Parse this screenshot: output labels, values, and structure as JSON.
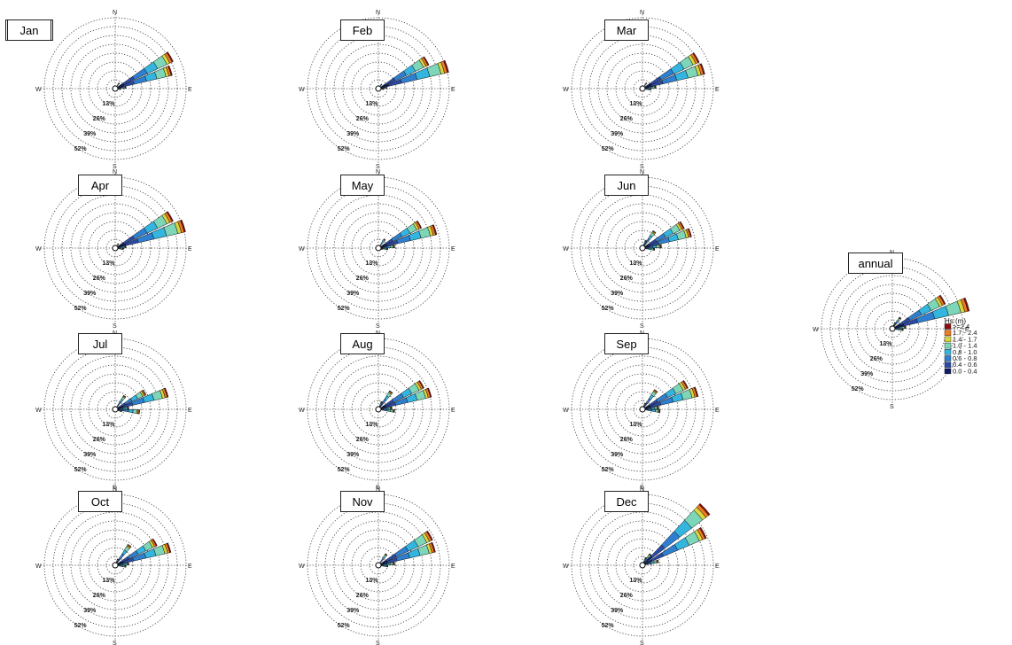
{
  "figure_title": "",
  "chart_data": [
    {
      "type": "wind-rose",
      "title": "Jan",
      "directions": [
        "N",
        "E",
        "S",
        "W"
      ],
      "ring_labels": [
        "13%",
        "26%",
        "39%",
        "52%"
      ],
      "petals": [
        {
          "dir_deg": 60,
          "total_pct": 47
        },
        {
          "dir_deg": 72,
          "total_pct": 43
        },
        {
          "dir_deg": 84,
          "total_pct": 8
        },
        {
          "dir_deg": 36,
          "total_pct": 5
        },
        {
          "dir_deg": 96,
          "total_pct": 4
        }
      ]
    },
    {
      "type": "wind-rose",
      "title": "Feb",
      "directions": [
        "N",
        "E",
        "S",
        "W"
      ],
      "ring_labels": [
        "13%",
        "26%",
        "39%",
        "52%"
      ],
      "petals": [
        {
          "dir_deg": 60,
          "total_pct": 41
        },
        {
          "dir_deg": 72,
          "total_pct": 53
        },
        {
          "dir_deg": 84,
          "total_pct": 6
        },
        {
          "dir_deg": 36,
          "total_pct": 4
        },
        {
          "dir_deg": 96,
          "total_pct": 4
        }
      ]
    },
    {
      "type": "wind-rose",
      "title": "Mar",
      "directions": [
        "N",
        "E",
        "S",
        "W"
      ],
      "ring_labels": [
        "13%",
        "26%",
        "39%",
        "52%"
      ],
      "petals": [
        {
          "dir_deg": 60,
          "total_pct": 46
        },
        {
          "dir_deg": 72,
          "total_pct": 47
        },
        {
          "dir_deg": 84,
          "total_pct": 10
        },
        {
          "dir_deg": 36,
          "total_pct": 5
        },
        {
          "dir_deg": 96,
          "total_pct": 6
        }
      ]
    },
    {
      "type": "wind-rose",
      "title": "Apr",
      "directions": [
        "N",
        "E",
        "S",
        "W"
      ],
      "ring_labels": [
        "13%",
        "26%",
        "39%",
        "52%"
      ],
      "petals": [
        {
          "dir_deg": 60,
          "total_pct": 47
        },
        {
          "dir_deg": 72,
          "total_pct": 53
        },
        {
          "dir_deg": 84,
          "total_pct": 8
        },
        {
          "dir_deg": 36,
          "total_pct": 4
        },
        {
          "dir_deg": 96,
          "total_pct": 6
        }
      ]
    },
    {
      "type": "wind-rose",
      "title": "May",
      "directions": [
        "N",
        "E",
        "S",
        "W"
      ],
      "ring_labels": [
        "13%",
        "26%",
        "39%",
        "52%"
      ],
      "petals": [
        {
          "dir_deg": 60,
          "total_pct": 35
        },
        {
          "dir_deg": 72,
          "total_pct": 44
        },
        {
          "dir_deg": 84,
          "total_pct": 12
        },
        {
          "dir_deg": 36,
          "total_pct": 8
        },
        {
          "dir_deg": 96,
          "total_pct": 7
        },
        {
          "dir_deg": 108,
          "total_pct": 3
        }
      ]
    },
    {
      "type": "wind-rose",
      "title": "Jun",
      "directions": [
        "N",
        "E",
        "S",
        "W"
      ],
      "ring_labels": [
        "13%",
        "26%",
        "39%",
        "52%"
      ],
      "petals": [
        {
          "dir_deg": 60,
          "total_pct": 34
        },
        {
          "dir_deg": 72,
          "total_pct": 37
        },
        {
          "dir_deg": 84,
          "total_pct": 14
        },
        {
          "dir_deg": 36,
          "total_pct": 15
        },
        {
          "dir_deg": 96,
          "total_pct": 9
        },
        {
          "dir_deg": 24,
          "total_pct": 6
        }
      ]
    },
    {
      "type": "wind-rose",
      "title": "Jul",
      "directions": [
        "N",
        "E",
        "S",
        "W"
      ],
      "ring_labels": [
        "13%",
        "26%",
        "39%",
        "52%"
      ],
      "petals": [
        {
          "dir_deg": 60,
          "total_pct": 25
        },
        {
          "dir_deg": 72,
          "total_pct": 40
        },
        {
          "dir_deg": 84,
          "total_pct": 10
        },
        {
          "dir_deg": 36,
          "total_pct": 12
        },
        {
          "dir_deg": 96,
          "total_pct": 18
        },
        {
          "dir_deg": 108,
          "total_pct": 5
        }
      ]
    },
    {
      "type": "wind-rose",
      "title": "Aug",
      "directions": [
        "N",
        "E",
        "S",
        "W"
      ],
      "ring_labels": [
        "13%",
        "26%",
        "39%",
        "52%"
      ],
      "petals": [
        {
          "dir_deg": 60,
          "total_pct": 37
        },
        {
          "dir_deg": 72,
          "total_pct": 40
        },
        {
          "dir_deg": 84,
          "total_pct": 10
        },
        {
          "dir_deg": 36,
          "total_pct": 16
        },
        {
          "dir_deg": 96,
          "total_pct": 12
        },
        {
          "dir_deg": 24,
          "total_pct": 6
        }
      ]
    },
    {
      "type": "wind-rose",
      "title": "Sep",
      "directions": [
        "N",
        "E",
        "S",
        "W"
      ],
      "ring_labels": [
        "13%",
        "26%",
        "39%",
        "52%"
      ],
      "petals": [
        {
          "dir_deg": 60,
          "total_pct": 37
        },
        {
          "dir_deg": 72,
          "total_pct": 42
        },
        {
          "dir_deg": 84,
          "total_pct": 12
        },
        {
          "dir_deg": 36,
          "total_pct": 17
        },
        {
          "dir_deg": 96,
          "total_pct": 13
        },
        {
          "dir_deg": 24,
          "total_pct": 5
        }
      ]
    },
    {
      "type": "wind-rose",
      "title": "Oct",
      "directions": [
        "N",
        "E",
        "S",
        "W"
      ],
      "ring_labels": [
        "13%",
        "26%",
        "39%",
        "52%"
      ],
      "petals": [
        {
          "dir_deg": 60,
          "total_pct": 34
        },
        {
          "dir_deg": 72,
          "total_pct": 42
        },
        {
          "dir_deg": 84,
          "total_pct": 10
        },
        {
          "dir_deg": 36,
          "total_pct": 18
        },
        {
          "dir_deg": 96,
          "total_pct": 8
        },
        {
          "dir_deg": 24,
          "total_pct": 5
        }
      ]
    },
    {
      "type": "wind-rose",
      "title": "Nov",
      "directions": [
        "N",
        "E",
        "S",
        "W"
      ],
      "ring_labels": [
        "13%",
        "26%",
        "39%",
        "52%"
      ],
      "petals": [
        {
          "dir_deg": 60,
          "total_pct": 44
        },
        {
          "dir_deg": 72,
          "total_pct": 43
        },
        {
          "dir_deg": 84,
          "total_pct": 12
        },
        {
          "dir_deg": 36,
          "total_pct": 10
        },
        {
          "dir_deg": 96,
          "total_pct": 7
        }
      ]
    },
    {
      "type": "wind-rose",
      "title": "Dec",
      "directions": [
        "N",
        "E",
        "S",
        "W"
      ],
      "ring_labels": [
        "13%",
        "26%",
        "39%",
        "52%"
      ],
      "petals": [
        {
          "dir_deg": 48,
          "total_pct": 62
        },
        {
          "dir_deg": 62,
          "total_pct": 51
        },
        {
          "dir_deg": 76,
          "total_pct": 12
        },
        {
          "dir_deg": 36,
          "total_pct": 10
        },
        {
          "dir_deg": 24,
          "total_pct": 6
        }
      ]
    },
    {
      "type": "wind-rose",
      "title": "annual",
      "directions": [
        "N",
        "E",
        "S",
        "W"
      ],
      "ring_labels": [
        "13%",
        "26%",
        "39%",
        "52%"
      ],
      "petals": [
        {
          "dir_deg": 60,
          "total_pct": 43
        },
        {
          "dir_deg": 72,
          "total_pct": 58
        },
        {
          "dir_deg": 84,
          "total_pct": 10
        },
        {
          "dir_deg": 36,
          "total_pct": 10
        },
        {
          "dir_deg": 96,
          "total_pct": 8
        },
        {
          "dir_deg": 24,
          "total_pct": 5
        }
      ],
      "legend": {
        "title": "Hs (m)",
        "bins": [
          "0.0 - 0.4",
          "0.4 - 0.6",
          "0.6 - 0.8",
          "0.8 - 1.0",
          "1.0 - 1.4",
          "1.4 - 1.7",
          "1.7 - 2.4",
          ">=2.4"
        ],
        "colors": [
          "#0f1c66",
          "#2a4aa8",
          "#2f7fd0",
          "#33b5e0",
          "#7dd6b7",
          "#d8d640",
          "#f07a1e",
          "#8a1010"
        ]
      }
    }
  ],
  "bin_colors": [
    "#0f1c66",
    "#2a4aa8",
    "#2f7fd0",
    "#33b5e0",
    "#7dd6b7",
    "#d8d640",
    "#f07a1e",
    "#8a1010"
  ],
  "bin_shares": [
    0.15,
    0.18,
    0.22,
    0.18,
    0.16,
    0.05,
    0.04,
    0.02
  ]
}
